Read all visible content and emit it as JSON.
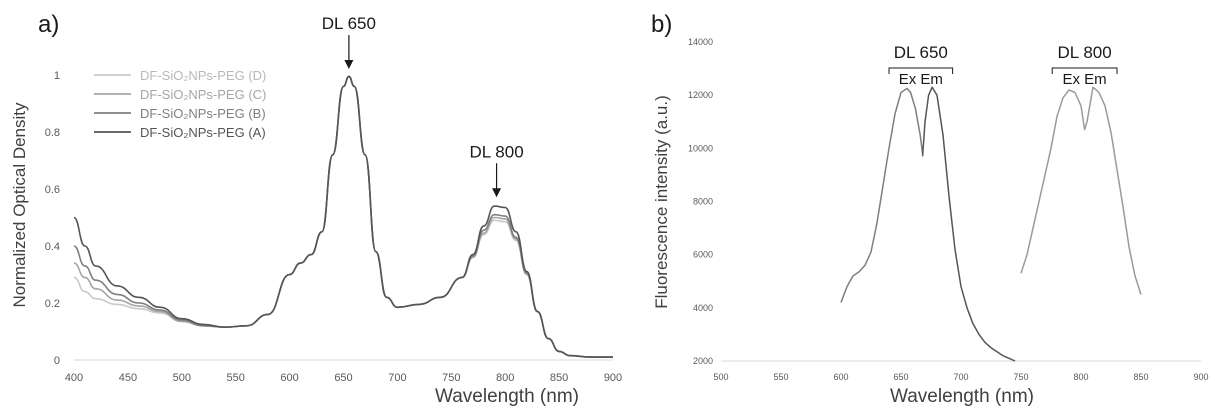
{
  "panels": {
    "a": {
      "letter": "a)"
    },
    "b": {
      "letter": "b)"
    }
  },
  "colors": {
    "axis": "#d9d9d9",
    "tick_text": "#595959",
    "label_text": "#404040",
    "annotation": "#1a1a1a",
    "series_A": "#555555",
    "series_B": "#7f7f7f",
    "series_C": "#a6a6a6",
    "series_D": "#c9c9c9",
    "excitation": "#7f7f7f",
    "emission": "#555555",
    "dl800": "#9a9a9a"
  },
  "chart_data": [
    {
      "type": "line",
      "panel": "a",
      "xlabel": "Wavelength (nm)",
      "ylabel": "Normalized Optical Density",
      "xlim": [
        400,
        900
      ],
      "ylim": [
        0,
        1.1
      ],
      "xticks": [
        "400",
        "450",
        "500",
        "550",
        "600",
        "650",
        "700",
        "750",
        "800",
        "850",
        "900"
      ],
      "yticks": [
        "0",
        "0.2",
        "0.4",
        "0.6",
        "0.8",
        "1"
      ],
      "grid": false,
      "legend_position": "top-left",
      "annotations": [
        {
          "text": "DL 650",
          "x": 655,
          "y": 1.0
        },
        {
          "text": "DL 800",
          "x": 792,
          "y": 0.55
        }
      ],
      "series": [
        {
          "name": "DF-SiO₂NPs-PEG (D)",
          "x": [
            400,
            410,
            420,
            440,
            460,
            480,
            500,
            520,
            540,
            560,
            580,
            600,
            610,
            620,
            630,
            640,
            650,
            655,
            660,
            670,
            680,
            690,
            700,
            720,
            740,
            760,
            770,
            780,
            790,
            800,
            810,
            820,
            830,
            840,
            850,
            860,
            880,
            900
          ],
          "y": [
            0.29,
            0.24,
            0.215,
            0.195,
            0.18,
            0.165,
            0.135,
            0.12,
            0.115,
            0.12,
            0.16,
            0.3,
            0.34,
            0.37,
            0.45,
            0.72,
            0.96,
            0.995,
            0.96,
            0.72,
            0.38,
            0.22,
            0.185,
            0.195,
            0.22,
            0.29,
            0.36,
            0.44,
            0.49,
            0.485,
            0.42,
            0.3,
            0.17,
            0.075,
            0.03,
            0.015,
            0.01,
            0.01
          ]
        },
        {
          "name": "DF-SiO₂NPs-PEG (C)",
          "x": [
            400,
            410,
            420,
            440,
            460,
            480,
            500,
            520,
            540,
            560,
            580,
            600,
            610,
            620,
            630,
            640,
            650,
            655,
            660,
            670,
            680,
            690,
            700,
            720,
            740,
            760,
            770,
            780,
            790,
            800,
            810,
            820,
            830,
            840,
            850,
            860,
            880,
            900
          ],
          "y": [
            0.34,
            0.29,
            0.25,
            0.21,
            0.19,
            0.17,
            0.135,
            0.12,
            0.115,
            0.12,
            0.16,
            0.3,
            0.34,
            0.37,
            0.45,
            0.72,
            0.96,
            0.995,
            0.96,
            0.72,
            0.38,
            0.22,
            0.185,
            0.195,
            0.22,
            0.29,
            0.36,
            0.445,
            0.5,
            0.495,
            0.425,
            0.3,
            0.17,
            0.075,
            0.03,
            0.015,
            0.01,
            0.01
          ]
        },
        {
          "name": "DF-SiO₂NPs-PEG (B)",
          "x": [
            400,
            410,
            420,
            440,
            460,
            480,
            500,
            520,
            540,
            560,
            580,
            600,
            610,
            620,
            630,
            640,
            650,
            655,
            660,
            670,
            680,
            690,
            700,
            720,
            740,
            760,
            770,
            780,
            790,
            800,
            810,
            820,
            830,
            840,
            850,
            860,
            880,
            900
          ],
          "y": [
            0.4,
            0.33,
            0.28,
            0.23,
            0.2,
            0.175,
            0.14,
            0.12,
            0.115,
            0.12,
            0.16,
            0.3,
            0.34,
            0.37,
            0.45,
            0.72,
            0.96,
            0.995,
            0.96,
            0.72,
            0.38,
            0.22,
            0.185,
            0.195,
            0.22,
            0.29,
            0.365,
            0.455,
            0.51,
            0.505,
            0.43,
            0.305,
            0.17,
            0.075,
            0.03,
            0.015,
            0.01,
            0.01
          ]
        },
        {
          "name": "DF-SiO₂NPs-PEG (A)",
          "x": [
            400,
            410,
            420,
            440,
            460,
            480,
            500,
            520,
            540,
            560,
            580,
            600,
            610,
            620,
            630,
            640,
            650,
            655,
            660,
            670,
            680,
            690,
            700,
            720,
            740,
            760,
            770,
            780,
            790,
            800,
            810,
            820,
            830,
            840,
            850,
            860,
            880,
            900
          ],
          "y": [
            0.5,
            0.4,
            0.33,
            0.26,
            0.22,
            0.185,
            0.145,
            0.125,
            0.115,
            0.12,
            0.16,
            0.3,
            0.34,
            0.37,
            0.45,
            0.72,
            0.96,
            0.995,
            0.96,
            0.72,
            0.38,
            0.22,
            0.185,
            0.195,
            0.22,
            0.29,
            0.37,
            0.47,
            0.54,
            0.535,
            0.45,
            0.31,
            0.17,
            0.075,
            0.03,
            0.015,
            0.01,
            0.01
          ]
        }
      ]
    },
    {
      "type": "line",
      "panel": "b",
      "xlabel": "Wavelength (nm)",
      "ylabel": "Fluorescence intensity (a.u.)",
      "xlim": [
        500,
        900
      ],
      "ylim": [
        2000,
        14000
      ],
      "xticks": [
        "500",
        "550",
        "600",
        "650",
        "700",
        "750",
        "800",
        "850",
        "900"
      ],
      "yticks": [
        "2000",
        "4000",
        "6000",
        "8000",
        "10000",
        "12000",
        "14000"
      ],
      "grid": false,
      "legend_position": "none",
      "annotations": [
        {
          "text": "DL 650",
          "sub": "Ex Em",
          "x_from": 640,
          "x_to": 693
        },
        {
          "text": "DL 800",
          "sub": "Ex Em",
          "x_from": 776,
          "x_to": 830
        }
      ],
      "series": [
        {
          "x": [
            600,
            605,
            610,
            615,
            620,
            625,
            630,
            635,
            640,
            645,
            650,
            655,
            658,
            662,
            666,
            668
          ],
          "y": [
            4200,
            4800,
            5200,
            5350,
            5600,
            6100,
            7200,
            8600,
            10000,
            11300,
            12100,
            12250,
            12100,
            11500,
            10500,
            9800
          ]
        },
        {
          "x": [
            668,
            670,
            673,
            676,
            680,
            685,
            690,
            695,
            700,
            705,
            710,
            715,
            720,
            725,
            730,
            735,
            740,
            745
          ],
          "y": [
            9700,
            11000,
            12000,
            12300,
            12000,
            10500,
            8200,
            6200,
            4800,
            4000,
            3400,
            3000,
            2700,
            2500,
            2350,
            2200,
            2100,
            2000
          ]
        },
        {
          "x": [
            750,
            755,
            760,
            765,
            770,
            775,
            780,
            785,
            790,
            795,
            800,
            803,
            805,
            810,
            815,
            820,
            825,
            830,
            835,
            840,
            845,
            850
          ],
          "y": [
            5300,
            6000,
            7000,
            8000,
            9000,
            10000,
            11200,
            11900,
            12200,
            12100,
            11600,
            10700,
            11000,
            12300,
            12100,
            11600,
            10600,
            9200,
            7800,
            6300,
            5200,
            4500
          ]
        }
      ]
    }
  ]
}
